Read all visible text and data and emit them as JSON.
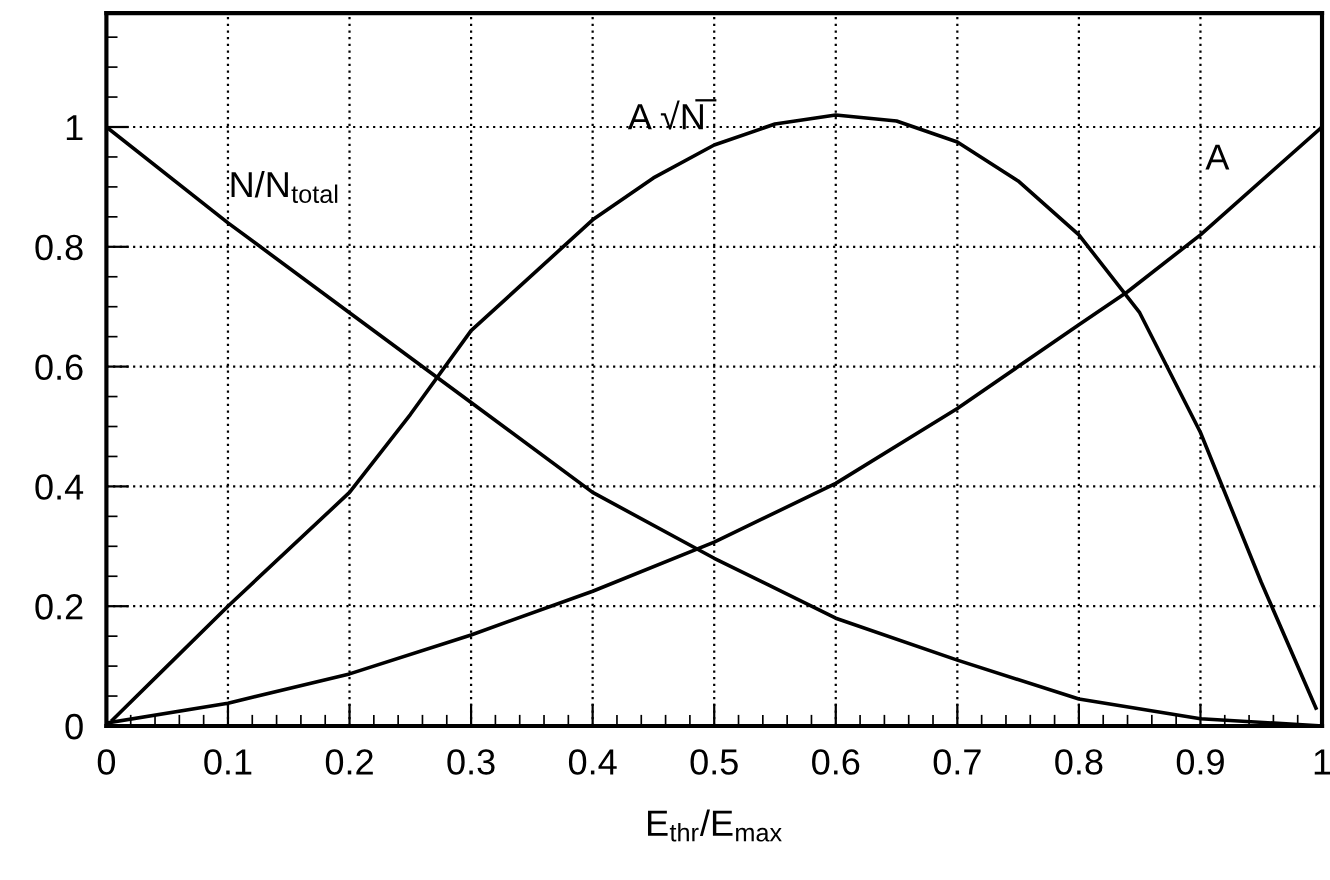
{
  "chart_data": {
    "type": "line",
    "xlabel": "E$_{thr}$/E$_{max}$",
    "xlim": [
      0,
      1
    ],
    "ylim": [
      0,
      1.19
    ],
    "xticks": [
      0,
      0.1,
      0.2,
      0.3,
      0.4,
      0.5,
      0.6,
      0.7,
      0.8,
      0.9,
      1
    ],
    "yticks": [
      0,
      0.2,
      0.4,
      0.6,
      0.8,
      1
    ],
    "grid": true,
    "marker": "none",
    "line_style": "solid",
    "series": [
      {
        "name": "N/N$_{total}$",
        "color": "#000000",
        "x": [
          0,
          0.1,
          0.2,
          0.3,
          0.4,
          0.5,
          0.6,
          0.7,
          0.8,
          0.9,
          1
        ],
        "values": [
          1.0,
          0.84,
          0.69,
          0.54,
          0.39,
          0.28,
          0.18,
          0.11,
          0.045,
          0.012,
          0.0
        ]
      },
      {
        "name": "A √N̅",
        "color": "#000000",
        "x": [
          0.005,
          0.05,
          0.1,
          0.2,
          0.25,
          0.3,
          0.4,
          0.45,
          0.5,
          0.55,
          0.6,
          0.65,
          0.7,
          0.75,
          0.8,
          0.85,
          0.9,
          0.95,
          0.995
        ],
        "values": [
          0.01,
          0.1,
          0.2,
          0.39,
          0.52,
          0.66,
          0.845,
          0.915,
          0.97,
          1.005,
          1.02,
          1.01,
          0.975,
          0.91,
          0.82,
          0.69,
          0.49,
          0.24,
          0.03
        ]
      },
      {
        "name": "A",
        "color": "#000000",
        "x": [
          0,
          0.1,
          0.2,
          0.3,
          0.4,
          0.5,
          0.6,
          0.7,
          0.8,
          0.84,
          0.9,
          1
        ],
        "values": [
          0.005,
          0.038,
          0.087,
          0.152,
          0.225,
          0.307,
          0.405,
          0.53,
          0.67,
          0.725,
          0.82,
          1.0
        ]
      }
    ]
  }
}
